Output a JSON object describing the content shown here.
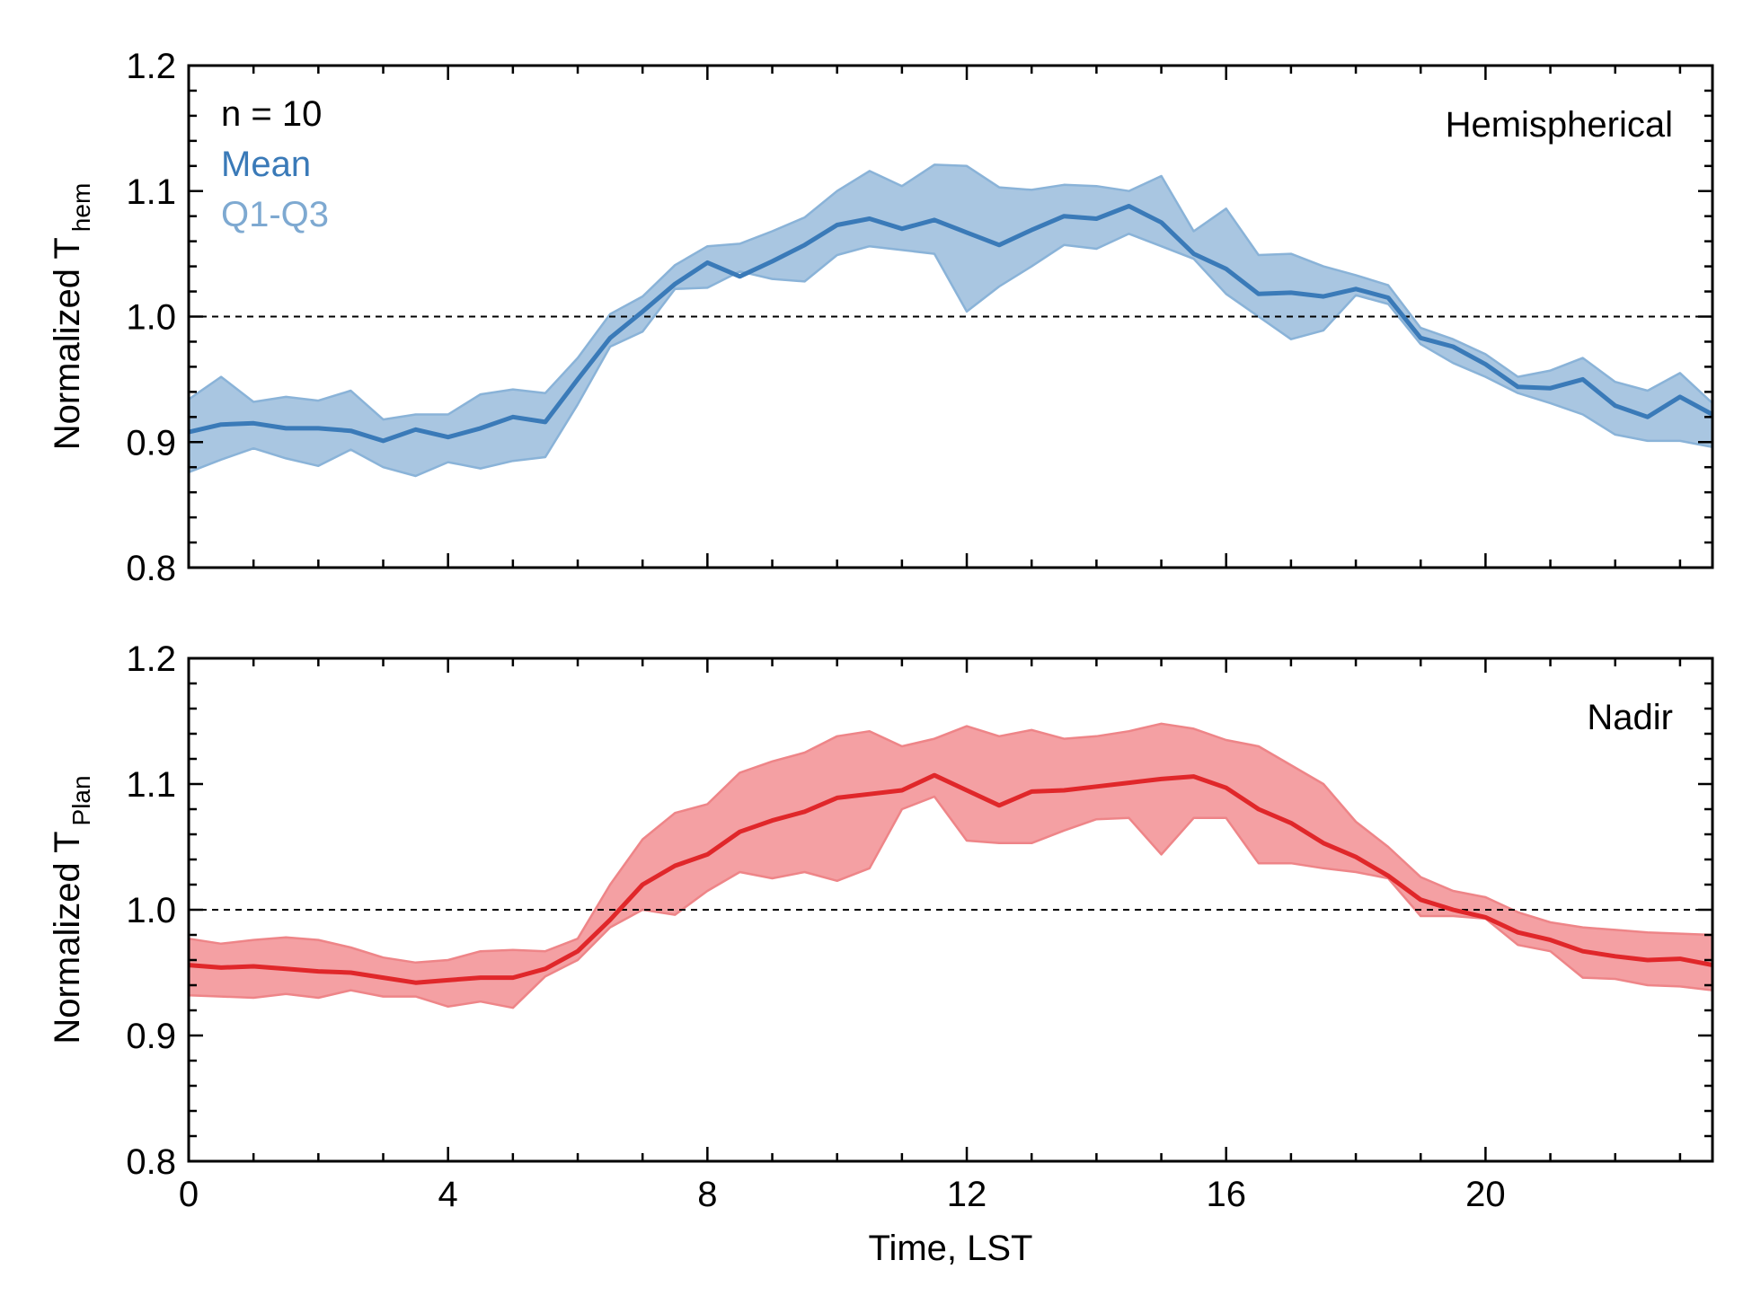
{
  "chart_data": [
    {
      "type": "area",
      "panel_label": "Hemispherical",
      "ylabel": "Normalized T",
      "ylabel_sub": "hem",
      "xlabel": "",
      "xlim": [
        0,
        23.5
      ],
      "ylim": [
        0.8,
        1.2
      ],
      "xticks": [
        "0",
        "4",
        "8",
        "12",
        "16",
        "20"
      ],
      "yticks": [
        "0.8",
        "0.9",
        "1.0",
        "1.1",
        "1.2"
      ],
      "reference_line": 1.0,
      "annotations": {
        "n": "n = 10",
        "mean": "Mean",
        "band": "Q1-Q3"
      },
      "colors": {
        "mean": "#3a7ab8",
        "band": "#a9c6e1",
        "band_edge": "#8ab3d8",
        "mean_text": "#3a7ab8",
        "band_text": "#7ea9d1"
      },
      "x": [
        0,
        0.5,
        1,
        1.5,
        2,
        2.5,
        3,
        3.5,
        4,
        4.5,
        5,
        5.5,
        6,
        6.5,
        7,
        7.5,
        8,
        8.5,
        9,
        9.5,
        10,
        10.5,
        11,
        11.5,
        12,
        12.5,
        13,
        13.5,
        14,
        14.5,
        15,
        15.5,
        16,
        16.5,
        17,
        17.5,
        18,
        18.5,
        19,
        19.5,
        20,
        20.5,
        21,
        21.5,
        22,
        22.5,
        23,
        23.5
      ],
      "mean": [
        0.908,
        0.914,
        0.915,
        0.911,
        0.911,
        0.909,
        0.901,
        0.91,
        0.904,
        0.911,
        0.92,
        0.916,
        0.95,
        0.983,
        1.004,
        1.026,
        1.043,
        1.032,
        1.044,
        1.057,
        1.073,
        1.078,
        1.07,
        1.077,
        1.067,
        1.057,
        1.069,
        1.08,
        1.078,
        1.088,
        1.075,
        1.05,
        1.038,
        1.018,
        1.019,
        1.016,
        1.022,
        1.015,
        0.983,
        0.976,
        0.962,
        0.944,
        0.943,
        0.95,
        0.929,
        0.92,
        0.936,
        0.922
      ],
      "q1": [
        0.876,
        0.886,
        0.895,
        0.887,
        0.881,
        0.894,
        0.88,
        0.873,
        0.884,
        0.879,
        0.885,
        0.888,
        0.93,
        0.976,
        0.988,
        1.022,
        1.023,
        1.036,
        1.03,
        1.028,
        1.049,
        1.056,
        1.053,
        1.05,
        1.004,
        1.024,
        1.04,
        1.057,
        1.054,
        1.066,
        1.056,
        1.046,
        1.018,
        1.0,
        0.982,
        0.989,
        1.017,
        1.01,
        0.978,
        0.963,
        0.952,
        0.939,
        0.931,
        0.922,
        0.906,
        0.901,
        0.901,
        0.896
      ],
      "q3": [
        0.934,
        0.952,
        0.932,
        0.936,
        0.933,
        0.941,
        0.918,
        0.922,
        0.922,
        0.938,
        0.942,
        0.939,
        0.967,
        1.002,
        1.016,
        1.041,
        1.056,
        1.058,
        1.068,
        1.079,
        1.1,
        1.116,
        1.104,
        1.121,
        1.12,
        1.103,
        1.101,
        1.105,
        1.104,
        1.1,
        1.112,
        1.068,
        1.086,
        1.049,
        1.05,
        1.04,
        1.033,
        1.025,
        0.991,
        0.982,
        0.97,
        0.952,
        0.957,
        0.967,
        0.948,
        0.941,
        0.955,
        0.931
      ]
    },
    {
      "type": "area",
      "panel_label": "Nadir",
      "ylabel": "Normalized T",
      "ylabel_sub": "Plan",
      "xlabel": "Time, LST",
      "xlim": [
        0,
        23.5
      ],
      "ylim": [
        0.8,
        1.2
      ],
      "xticks": [
        "0",
        "4",
        "8",
        "12",
        "16",
        "20"
      ],
      "yticks": [
        "0.8",
        "0.9",
        "1.0",
        "1.1",
        "1.2"
      ],
      "reference_line": 1.0,
      "colors": {
        "mean": "#e0272a",
        "band": "#f4a0a3",
        "band_edge": "#ee8588"
      },
      "x": [
        0,
        0.5,
        1,
        1.5,
        2,
        2.5,
        3,
        3.5,
        4,
        4.5,
        5,
        5.5,
        6,
        6.5,
        7,
        7.5,
        8,
        8.5,
        9,
        9.5,
        10,
        10.5,
        11,
        11.5,
        12,
        12.5,
        13,
        13.5,
        14,
        14.5,
        15,
        15.5,
        16,
        16.5,
        17,
        17.5,
        18,
        18.5,
        19,
        19.5,
        20,
        20.5,
        21,
        21.5,
        22,
        22.5,
        23,
        23.5
      ],
      "mean": [
        0.956,
        0.954,
        0.955,
        0.953,
        0.951,
        0.95,
        0.946,
        0.942,
        0.944,
        0.946,
        0.946,
        0.953,
        0.967,
        0.992,
        1.02,
        1.035,
        1.044,
        1.062,
        1.071,
        1.078,
        1.089,
        1.092,
        1.095,
        1.107,
        1.095,
        1.083,
        1.094,
        1.095,
        1.098,
        1.101,
        1.104,
        1.106,
        1.097,
        1.08,
        1.069,
        1.053,
        1.042,
        1.027,
        1.008,
        1.0,
        0.994,
        0.982,
        0.976,
        0.967,
        0.963,
        0.96,
        0.961,
        0.956
      ],
      "q1": [
        0.932,
        0.931,
        0.93,
        0.933,
        0.93,
        0.936,
        0.931,
        0.931,
        0.923,
        0.927,
        0.922,
        0.947,
        0.96,
        0.986,
        1.0,
        0.996,
        1.015,
        1.03,
        1.025,
        1.03,
        1.023,
        1.033,
        1.08,
        1.09,
        1.055,
        1.053,
        1.053,
        1.063,
        1.072,
        1.073,
        1.044,
        1.073,
        1.073,
        1.037,
        1.037,
        1.033,
        1.03,
        1.025,
        0.995,
        0.995,
        0.993,
        0.972,
        0.967,
        0.946,
        0.945,
        0.94,
        0.939,
        0.936
      ],
      "q3": [
        0.977,
        0.973,
        0.976,
        0.978,
        0.976,
        0.97,
        0.962,
        0.958,
        0.96,
        0.967,
        0.968,
        0.967,
        0.977,
        1.02,
        1.056,
        1.077,
        1.084,
        1.109,
        1.118,
        1.125,
        1.138,
        1.142,
        1.13,
        1.136,
        1.146,
        1.138,
        1.143,
        1.136,
        1.138,
        1.142,
        1.148,
        1.144,
        1.135,
        1.13,
        1.115,
        1.1,
        1.07,
        1.05,
        1.026,
        1.015,
        1.01,
        0.998,
        0.99,
        0.986,
        0.984,
        0.982,
        0.981,
        0.98
      ]
    }
  ]
}
